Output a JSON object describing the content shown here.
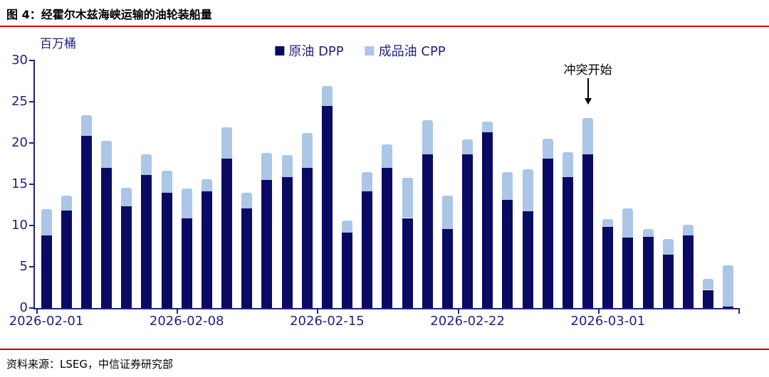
{
  "page": {
    "title": "图 4：经霍尔木兹海峡运输的油轮装船量",
    "source": "资料来源：LSEG，中信证券研究部"
  },
  "colors": {
    "dpp": "#0a0a64",
    "cpp": "#abc6e6",
    "axis": "#22227e",
    "rule_red": "#d40000",
    "annotation_ink": "#000000"
  },
  "chart_data": {
    "type": "bar",
    "stacked": true,
    "title": "经霍尔木兹海峡运输的油轮装船量",
    "unit_label": "百万桶",
    "xlabel": "",
    "ylabel": "百万桶",
    "ylim": [
      0,
      30
    ],
    "yticks": [
      0,
      5,
      10,
      15,
      20,
      25,
      30
    ],
    "grid": false,
    "legend_position": "top-center",
    "categories": [
      "2026-02-01",
      "2026-02-02",
      "2026-02-03",
      "2026-02-04",
      "2026-02-05",
      "2026-02-06",
      "2026-02-07",
      "2026-02-08",
      "2026-02-09",
      "2026-02-10",
      "2026-02-11",
      "2026-02-12",
      "2026-02-13",
      "2026-02-14",
      "2026-02-15",
      "2026-02-16",
      "2026-02-17",
      "2026-02-18",
      "2026-02-19",
      "2026-02-20",
      "2026-02-21",
      "2026-02-22",
      "2026-02-23",
      "2026-02-24",
      "2026-02-25",
      "2026-02-26",
      "2026-02-27",
      "2026-02-28",
      "2026-03-01",
      "2026-03-02",
      "2026-03-03",
      "2026-03-04",
      "2026-03-05",
      "2026-03-06",
      "2026-03-07"
    ],
    "x_tick_labels": [
      "2026-02-01",
      "2026-02-08",
      "2026-02-15",
      "2026-02-22",
      "2026-03-01"
    ],
    "x_tick_indices": [
      0,
      7,
      14,
      21,
      28
    ],
    "series": [
      {
        "name": "原油 DPP",
        "color": "#0a0a64",
        "values": [
          8.8,
          11.8,
          20.9,
          17.0,
          12.3,
          16.1,
          14.0,
          10.9,
          14.1,
          18.1,
          12.1,
          15.5,
          15.9,
          17.0,
          24.5,
          9.1,
          14.1,
          17.0,
          10.9,
          18.6,
          9.6,
          18.6,
          21.3,
          13.1,
          11.7,
          18.1,
          15.9,
          18.6,
          9.8,
          8.5,
          8.6,
          6.5,
          8.8,
          2.2,
          0.2
        ]
      },
      {
        "name": "成品油 CPP",
        "color": "#abc6e6",
        "values": [
          3.2,
          1.8,
          2.5,
          3.3,
          2.3,
          2.5,
          2.6,
          3.6,
          1.5,
          3.8,
          1.9,
          3.3,
          2.6,
          4.2,
          2.4,
          1.5,
          2.4,
          2.8,
          4.9,
          4.2,
          4.0,
          1.8,
          1.3,
          3.4,
          5.1,
          2.4,
          3.0,
          4.4,
          1.0,
          3.6,
          1.0,
          1.9,
          1.3,
          1.3,
          5.0
        ]
      }
    ],
    "annotation": {
      "text": "冲突开始",
      "category": "2026-02-28",
      "index": 27
    }
  }
}
